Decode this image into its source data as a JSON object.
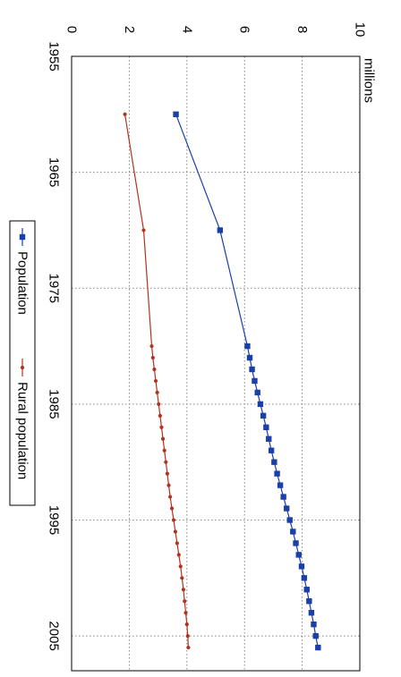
{
  "chart_data": {
    "type": "line",
    "orientation": "rotated-90-clockwise",
    "ylabel": "millions",
    "ylim": [
      0,
      10
    ],
    "yticks": [
      0,
      2,
      4,
      6,
      8,
      10
    ],
    "xlim": [
      1955,
      2008
    ],
    "xticks": [
      1955,
      1965,
      1975,
      1985,
      1995,
      2005
    ],
    "grid": true,
    "legend_position": "left",
    "series": [
      {
        "name": "Population",
        "color": "#1a3fa8",
        "marker": "square",
        "x": [
          1960,
          1970,
          1980,
          1981,
          1982,
          1983,
          1984,
          1985,
          1986,
          1987,
          1988,
          1989,
          1990,
          1991,
          1992,
          1993,
          1994,
          1995,
          1996,
          1997,
          1998,
          1999,
          2000,
          2001,
          2002,
          2003,
          2004,
          2005,
          2006
        ],
        "values": [
          3.62,
          5.15,
          6.1,
          6.18,
          6.26,
          6.35,
          6.45,
          6.55,
          6.65,
          6.75,
          6.84,
          6.93,
          7.03,
          7.13,
          7.24,
          7.35,
          7.46,
          7.57,
          7.68,
          7.78,
          7.88,
          7.98,
          8.07,
          8.16,
          8.24,
          8.32,
          8.4,
          8.47,
          8.55
        ]
      },
      {
        "name": "Rural population",
        "color": "#b3321d",
        "marker": "circle",
        "x": [
          1960,
          1970,
          1980,
          1981,
          1982,
          1983,
          1984,
          1985,
          1986,
          1987,
          1988,
          1989,
          1990,
          1991,
          1992,
          1993,
          1994,
          1995,
          1996,
          1997,
          1998,
          1999,
          2000,
          2001,
          2002,
          2003,
          2004,
          2005,
          2006
        ],
        "values": [
          1.85,
          2.5,
          2.78,
          2.82,
          2.87,
          2.92,
          2.97,
          3.02,
          3.07,
          3.12,
          3.17,
          3.22,
          3.27,
          3.32,
          3.37,
          3.42,
          3.48,
          3.54,
          3.6,
          3.66,
          3.72,
          3.78,
          3.83,
          3.88,
          3.92,
          3.96,
          4.0,
          4.03,
          4.05
        ]
      }
    ]
  }
}
